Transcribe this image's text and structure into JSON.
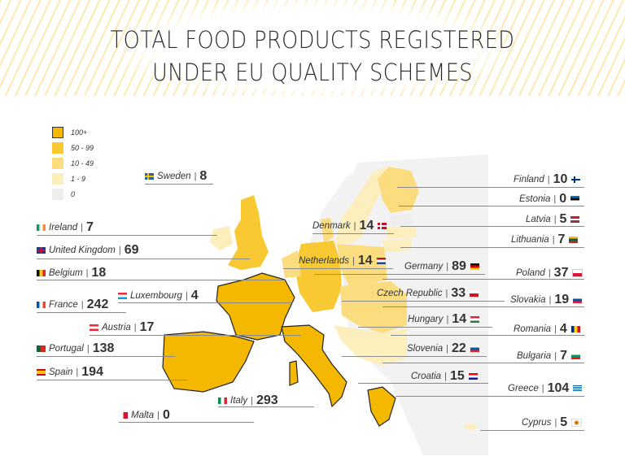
{
  "title": {
    "line1": "TOTAL FOOD PRODUCTS REGISTERED",
    "line2": "UNDER EU QUALITY SCHEMES"
  },
  "legend": [
    {
      "label": "100+",
      "color": "#f5b800",
      "border": "#333333"
    },
    {
      "label": "50 - 99",
      "color": "#f8c933",
      "border": "#f8c933"
    },
    {
      "label": "10 - 49",
      "color": "#fbdd80",
      "border": "#fbdd80"
    },
    {
      "label": "1 - 9",
      "color": "#fdeebd",
      "border": "#fdeebd"
    },
    {
      "label": "0",
      "color": "#eeeeee",
      "border": "#eeeeee"
    }
  ],
  "countries": {
    "sweden": {
      "name": "Sweden",
      "value": "8",
      "flag": "sweden-flag-icon"
    },
    "ireland": {
      "name": "Ireland",
      "value": "7",
      "flag": "ireland-flag-icon"
    },
    "uk": {
      "name": "United Kingdom",
      "value": "69",
      "flag": "uk-flag-icon"
    },
    "belgium": {
      "name": "Belgium",
      "value": "18",
      "flag": "belgium-flag-icon"
    },
    "luxembourg": {
      "name": "Luxembourg",
      "value": "4",
      "flag": "luxembourg-flag-icon"
    },
    "france": {
      "name": "France",
      "value": "242",
      "flag": "france-flag-icon"
    },
    "austria": {
      "name": "Austria",
      "value": "17",
      "flag": "austria-flag-icon"
    },
    "portugal": {
      "name": "Portugal",
      "value": "138",
      "flag": "portugal-flag-icon"
    },
    "spain": {
      "name": "Spain",
      "value": "194",
      "flag": "spain-flag-icon"
    },
    "italy": {
      "name": "Italy",
      "value": "293",
      "flag": "italy-flag-icon"
    },
    "malta": {
      "name": "Malta",
      "value": "0",
      "flag": "malta-flag-icon"
    },
    "denmark": {
      "name": "Denmark",
      "value": "14",
      "flag": "denmark-flag-icon"
    },
    "netherlands": {
      "name": "Netherlands",
      "value": "14",
      "flag": "netherlands-flag-icon"
    },
    "germany": {
      "name": "Germany",
      "value": "89",
      "flag": "germany-flag-icon"
    },
    "czech": {
      "name": "Czech Republic",
      "value": "33",
      "flag": "czech-flag-icon"
    },
    "hungary": {
      "name": "Hungary",
      "value": "14",
      "flag": "hungary-flag-icon"
    },
    "slovenia": {
      "name": "Slovenia",
      "value": "22",
      "flag": "slovenia-flag-icon"
    },
    "croatia": {
      "name": "Croatia",
      "value": "15",
      "flag": "croatia-flag-icon"
    },
    "finland": {
      "name": "Finland",
      "value": "10",
      "flag": "finland-flag-icon"
    },
    "estonia": {
      "name": "Estonia",
      "value": "0",
      "flag": "estonia-flag-icon"
    },
    "latvia": {
      "name": "Latvia",
      "value": "5",
      "flag": "latvia-flag-icon"
    },
    "lithuania": {
      "name": "Lithuania",
      "value": "7",
      "flag": "lithuania-flag-icon"
    },
    "poland": {
      "name": "Poland",
      "value": "37",
      "flag": "poland-flag-icon"
    },
    "slovakia": {
      "name": "Slovakia",
      "value": "19",
      "flag": "slovakia-flag-icon"
    },
    "romania": {
      "name": "Romania",
      "value": "4",
      "flag": "romania-flag-icon"
    },
    "bulgaria": {
      "name": "Bulgaria",
      "value": "7",
      "flag": "bulgaria-flag-icon"
    },
    "greece": {
      "name": "Greece",
      "value": "104",
      "flag": "greece-flag-icon"
    },
    "cyprus": {
      "name": "Cyprus",
      "value": "5",
      "flag": "cyprus-flag-icon"
    }
  }
}
